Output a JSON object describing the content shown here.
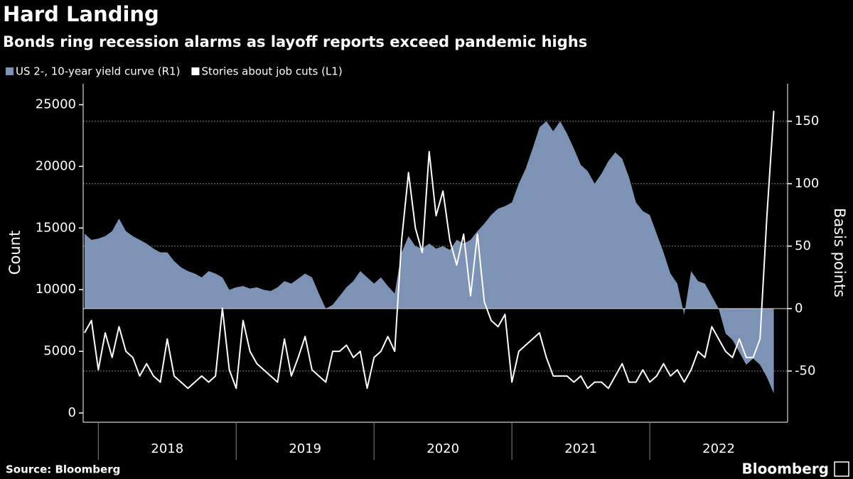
{
  "chart_data": {
    "type": "combo",
    "title": "Hard Landing",
    "subtitle": "Bonds ring recession alarms as layoff reports exceed pandemic highs",
    "ylabel": "Count",
    "y2label": "Basis points",
    "source": "Source: Bloomberg",
    "brand": "Bloomberg",
    "legend": "top-left",
    "grid": "y2",
    "xlim": [
      2017.89,
      2023.0
    ],
    "xticks": [
      {
        "value": 2018.5,
        "label": "2018"
      },
      {
        "value": 2019.5,
        "label": "2019"
      },
      {
        "value": 2020.5,
        "label": "2020"
      },
      {
        "value": 2021.5,
        "label": "2021"
      },
      {
        "value": 2022.5,
        "label": "2022"
      }
    ],
    "ylim": [
      -750,
      26700
    ],
    "yticks": [
      0,
      5000,
      10000,
      15000,
      20000,
      25000
    ],
    "y2lim": [
      -91,
      180
    ],
    "y2ticks": [
      -50,
      0,
      50,
      100,
      150
    ],
    "x": [
      2017.9,
      2017.95,
      2018.0,
      2018.05,
      2018.1,
      2018.15,
      2018.2,
      2018.25,
      2018.3,
      2018.35,
      2018.4,
      2018.45,
      2018.5,
      2018.55,
      2018.6,
      2018.65,
      2018.7,
      2018.75,
      2018.8,
      2018.85,
      2018.9,
      2018.95,
      2019.0,
      2019.05,
      2019.1,
      2019.15,
      2019.2,
      2019.25,
      2019.3,
      2019.35,
      2019.4,
      2019.45,
      2019.5,
      2019.55,
      2019.6,
      2019.65,
      2019.7,
      2019.75,
      2019.8,
      2019.85,
      2019.9,
      2019.95,
      2020.0,
      2020.05,
      2020.1,
      2020.15,
      2020.2,
      2020.25,
      2020.3,
      2020.35,
      2020.4,
      2020.45,
      2020.5,
      2020.55,
      2020.6,
      2020.65,
      2020.7,
      2020.75,
      2020.8,
      2020.85,
      2020.9,
      2020.95,
      2021.0,
      2021.05,
      2021.1,
      2021.15,
      2021.2,
      2021.25,
      2021.3,
      2021.35,
      2021.4,
      2021.45,
      2021.5,
      2021.55,
      2021.6,
      2021.65,
      2021.7,
      2021.75,
      2021.8,
      2021.85,
      2021.9,
      2021.95,
      2022.0,
      2022.05,
      2022.1,
      2022.15,
      2022.2,
      2022.25,
      2022.3,
      2022.35,
      2022.4,
      2022.45,
      2022.5,
      2022.55,
      2022.6,
      2022.65,
      2022.7,
      2022.75,
      2022.8,
      2022.85,
      2022.9
    ],
    "series": [
      {
        "name": "US 2-, 10-year yield curve (R1)",
        "type": "area",
        "axis": "y2",
        "color": "#7d93b6",
        "values": [
          60,
          55,
          56,
          58,
          62,
          72,
          62,
          58,
          55,
          52,
          48,
          45,
          45,
          38,
          33,
          30,
          28,
          25,
          30,
          28,
          25,
          15,
          17,
          18,
          16,
          17,
          15,
          14,
          17,
          22,
          20,
          24,
          28,
          25,
          12,
          0,
          3,
          10,
          17,
          22,
          30,
          25,
          20,
          25,
          18,
          12,
          45,
          58,
          50,
          48,
          52,
          48,
          50,
          47,
          55,
          52,
          55,
          62,
          68,
          75,
          80,
          82,
          85,
          100,
          112,
          128,
          145,
          150,
          142,
          150,
          140,
          128,
          115,
          110,
          100,
          108,
          118,
          125,
          120,
          105,
          85,
          78,
          75,
          60,
          45,
          28,
          20,
          -5,
          30,
          22,
          20,
          10,
          0,
          -20,
          -25,
          -35,
          -45,
          -40,
          -45,
          -55,
          -68
        ]
      },
      {
        "name": "Stories about job cuts (L1)",
        "type": "line",
        "axis": "y",
        "color": "#ffffff",
        "values": [
          6500,
          7500,
          3500,
          6500,
          4500,
          7000,
          5000,
          4500,
          3000,
          4000,
          3000,
          2500,
          6000,
          3000,
          2500,
          2000,
          2500,
          3000,
          2500,
          3000,
          8500,
          3500,
          2000,
          7500,
          5000,
          4000,
          3500,
          3000,
          2500,
          6000,
          3000,
          4500,
          6200,
          3500,
          3000,
          2500,
          5000,
          5000,
          5500,
          4500,
          5000,
          2000,
          4500,
          5000,
          6200,
          5000,
          14000,
          19500,
          15000,
          13000,
          21200,
          16000,
          18000,
          14000,
          12000,
          14500,
          9500,
          14500,
          9000,
          7500,
          7000,
          8000,
          2500,
          5000,
          5500,
          6000,
          6500,
          4500,
          3000,
          3000,
          3000,
          2500,
          3000,
          2000,
          2500,
          2500,
          2000,
          3000,
          4000,
          2500,
          2500,
          3500,
          2500,
          3000,
          4000,
          3000,
          3500,
          2500,
          3500,
          5000,
          4500,
          7000,
          6000,
          5000,
          4500,
          6000,
          4500,
          4500,
          6000,
          16000,
          24500
        ]
      }
    ]
  }
}
